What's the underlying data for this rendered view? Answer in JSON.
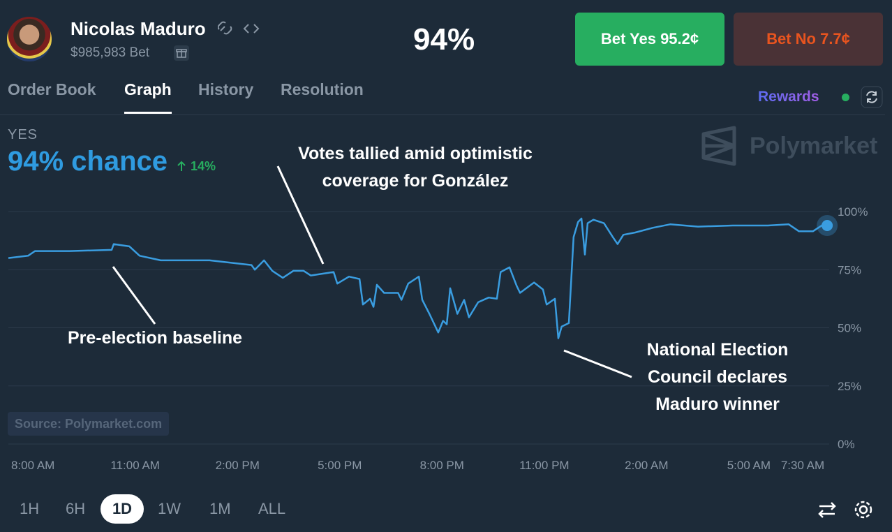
{
  "header": {
    "name": "Nicolas Maduro",
    "volume": "$985,983 Bet",
    "probability": "94%",
    "bet_yes": "Bet Yes 95.2¢",
    "bet_no": "Bet No 7.7¢"
  },
  "tabs": [
    "Order Book",
    "Graph",
    "History",
    "Resolution"
  ],
  "rewards": "Rewards",
  "outcome": {
    "label": "YES",
    "chance": "94% chance",
    "change": "14%"
  },
  "watermark": "Polymarket",
  "source": "Source: Polymarket.com",
  "ranges": [
    "1H",
    "6H",
    "1D",
    "1W",
    "1M",
    "ALL"
  ],
  "chart_data": {
    "type": "line",
    "color": "#3a9de0",
    "x": [
      -0.72,
      -0.14,
      0.06,
      1.08,
      2.31,
      2.37,
      2.83,
      3.13,
      3.75,
      5.18,
      6.41,
      6.51,
      6.78,
      7.02,
      7.33,
      7.64,
      7.94,
      8.15,
      8.82,
      8.93,
      9.27,
      9.58,
      9.68,
      9.89,
      9.99,
      10.09,
      10.3,
      10.71,
      10.81,
      11.01,
      11.32,
      11.42,
      11.63,
      11.89,
      12.03,
      12.14,
      12.24,
      12.45,
      12.65,
      12.79,
      13.06,
      13.37,
      13.61,
      13.72,
      13.98,
      14.19,
      14.29,
      14.7,
      14.96,
      15.07,
      15.31,
      15.41,
      15.51,
      15.72,
      15.86,
      15.99,
      16.09,
      16.19,
      16.27,
      16.44,
      16.75,
      17.01,
      17.15,
      17.32,
      17.67,
      18.18,
      18.69,
      19.51,
      20.53,
      21.56,
      22.17,
      22.47,
      22.88,
      23.19,
      23.4
    ],
    "values": [
      80,
      81,
      83,
      83,
      83.5,
      86,
      85,
      81,
      79,
      79,
      77,
      75,
      79,
      74.5,
      71.5,
      74.5,
      74.5,
      72.5,
      74,
      69,
      72,
      71,
      60,
      62.5,
      59,
      68.5,
      65,
      65,
      62,
      69,
      72,
      62,
      56,
      48,
      53,
      51.5,
      67,
      56,
      62,
      54.5,
      61,
      63,
      62.5,
      74,
      76,
      68,
      65,
      69.5,
      66.5,
      60,
      62.5,
      45.5,
      50.5,
      52,
      89,
      95.5,
      97,
      81.5,
      95,
      96.5,
      95,
      89,
      86,
      90,
      91,
      93,
      94.5,
      93.5,
      94,
      94,
      94.5,
      91.5,
      91.5,
      94.5,
      94
    ],
    "xlim": [
      -0.72,
      23.5
    ],
    "xticks": [
      {
        "value": 0,
        "label": "8:00 AM"
      },
      {
        "value": 3,
        "label": "11:00 AM"
      },
      {
        "value": 6,
        "label": "2:00 PM"
      },
      {
        "value": 9,
        "label": "5:00 PM"
      },
      {
        "value": 12,
        "label": "8:00 PM"
      },
      {
        "value": 15,
        "label": "11:00 PM"
      },
      {
        "value": 18,
        "label": "2:00 AM"
      },
      {
        "value": 21,
        "label": "5:00 AM"
      },
      {
        "value": 23.5,
        "label": "7:30 AM"
      }
    ],
    "ylim": [
      0,
      100
    ],
    "yticks": [
      {
        "value": 0,
        "label": "0%"
      },
      {
        "value": 25,
        "label": "25%"
      },
      {
        "value": 50,
        "label": "50%"
      },
      {
        "value": 75,
        "label": "75%"
      },
      {
        "value": 100,
        "label": "100%"
      }
    ],
    "grid": true,
    "annotations": [
      {
        "lines": [
          "Votes tallied amid optimistic",
          "coverage for González"
        ]
      },
      {
        "lines": [
          "Pre-election baseline"
        ]
      },
      {
        "lines": [
          "National Election",
          "Council declares",
          "Maduro winner"
        ]
      }
    ]
  }
}
